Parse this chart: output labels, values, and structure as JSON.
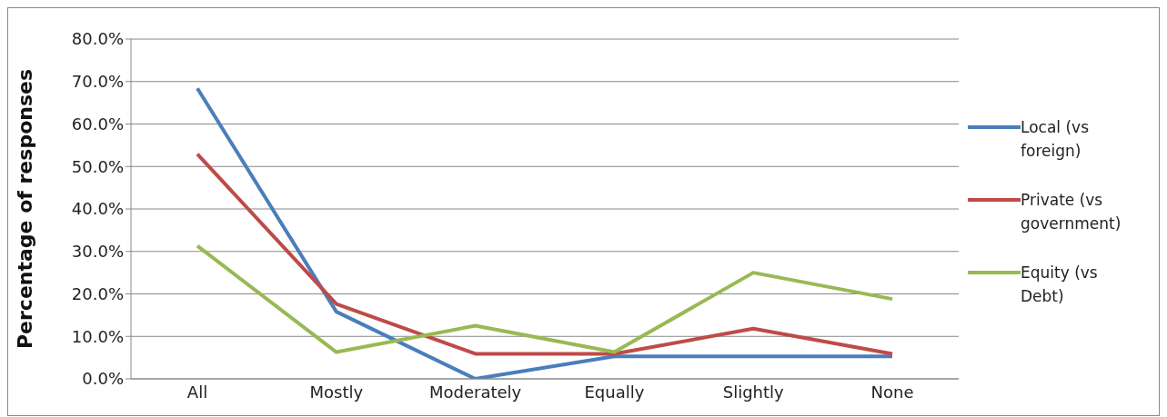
{
  "chart_data": {
    "type": "line",
    "ylabel": "Percentage of responses",
    "categories": [
      "All",
      "Mostly",
      "Moderately",
      "Equally",
      "Slightly",
      "None"
    ],
    "series": [
      {
        "name": "Local (vs foreign)",
        "color": "#4a7ebb",
        "values": [
          68.4,
          15.8,
          0,
          5.3,
          5.3,
          5.3
        ]
      },
      {
        "name": "Private (vs government)",
        "color": "#be4b48",
        "values": [
          52.9,
          17.6,
          5.9,
          5.9,
          11.8,
          5.9
        ]
      },
      {
        "name": "Equity (vs Debt)",
        "color": "#98b954",
        "values": [
          31.3,
          6.3,
          12.5,
          6.3,
          25.0,
          18.8
        ]
      }
    ],
    "ylim": [
      0,
      80
    ],
    "yticks": [
      {
        "value": 0,
        "label": "0.0%"
      },
      {
        "value": 10,
        "label": "10.0%"
      },
      {
        "value": 20,
        "label": "20.0%"
      },
      {
        "value": 30,
        "label": "30.0%"
      },
      {
        "value": 40,
        "label": "40.0%"
      },
      {
        "value": 50,
        "label": "50.0%"
      },
      {
        "value": 60,
        "label": "60.0%"
      },
      {
        "value": 70,
        "label": "70.0%"
      },
      {
        "value": 80,
        "label": "80.0%"
      }
    ],
    "grid": "y",
    "legend": "right",
    "marker": "none",
    "line_style": "solid"
  }
}
